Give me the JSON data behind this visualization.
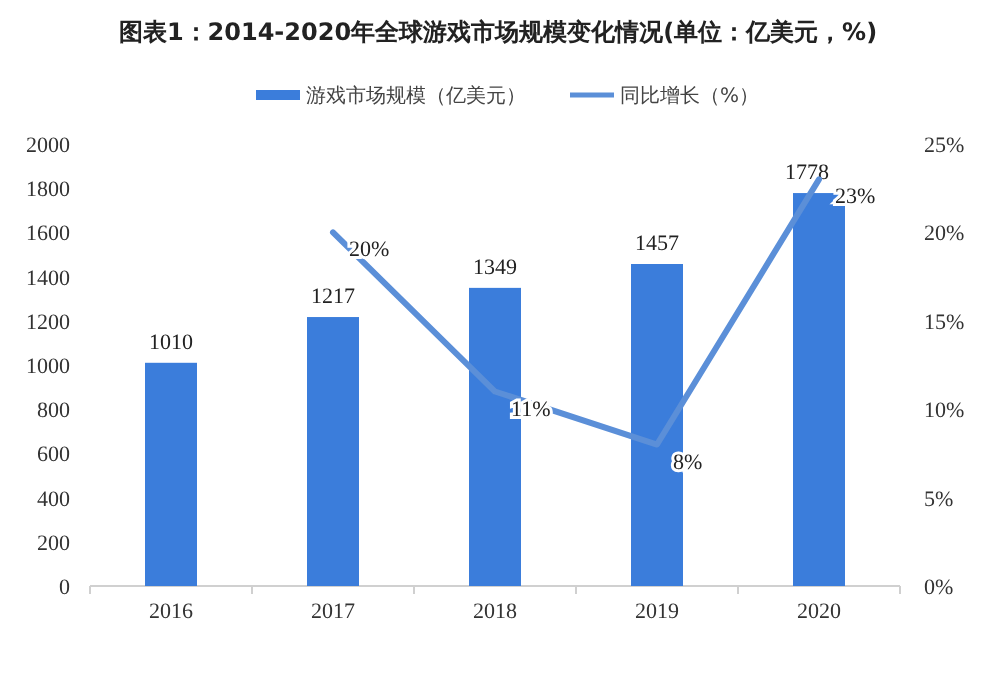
{
  "chart_data": {
    "type": "bar",
    "title": "图表1：2014-2020年全球游戏市场规模变化情况(单位：亿美元，%)",
    "categories": [
      "2016",
      "2017",
      "2018",
      "2019",
      "2020"
    ],
    "series": [
      {
        "name": "游戏市场规模（亿美元）",
        "color": "#3b7ddb",
        "values": [
          1010,
          1217,
          1349,
          1457,
          1778
        ]
      },
      {
        "name": "同比增长（%）",
        "type": "line",
        "axis": "y2",
        "color": "#5b8fd8",
        "values": [
          null,
          20,
          11,
          8,
          23
        ],
        "value_labels": [
          null,
          "20%",
          "11%",
          "8%",
          "23%"
        ]
      }
    ],
    "ylim": [
      0,
      2000
    ],
    "yticks": [
      0,
      200,
      400,
      600,
      800,
      1000,
      1200,
      1400,
      1600,
      1800,
      2000
    ],
    "y2lim": [
      0,
      25
    ],
    "y2ticks": [
      {
        "value": 0,
        "label": "0%"
      },
      {
        "value": 5,
        "label": "5%"
      },
      {
        "value": 10,
        "label": "10%"
      },
      {
        "value": 15,
        "label": "15%"
      },
      {
        "value": 20,
        "label": "20%"
      },
      {
        "value": 25,
        "label": "25%"
      }
    ],
    "data_labels": true,
    "legend": "top",
    "grid": false,
    "marker": "none",
    "line_style": "solid"
  }
}
